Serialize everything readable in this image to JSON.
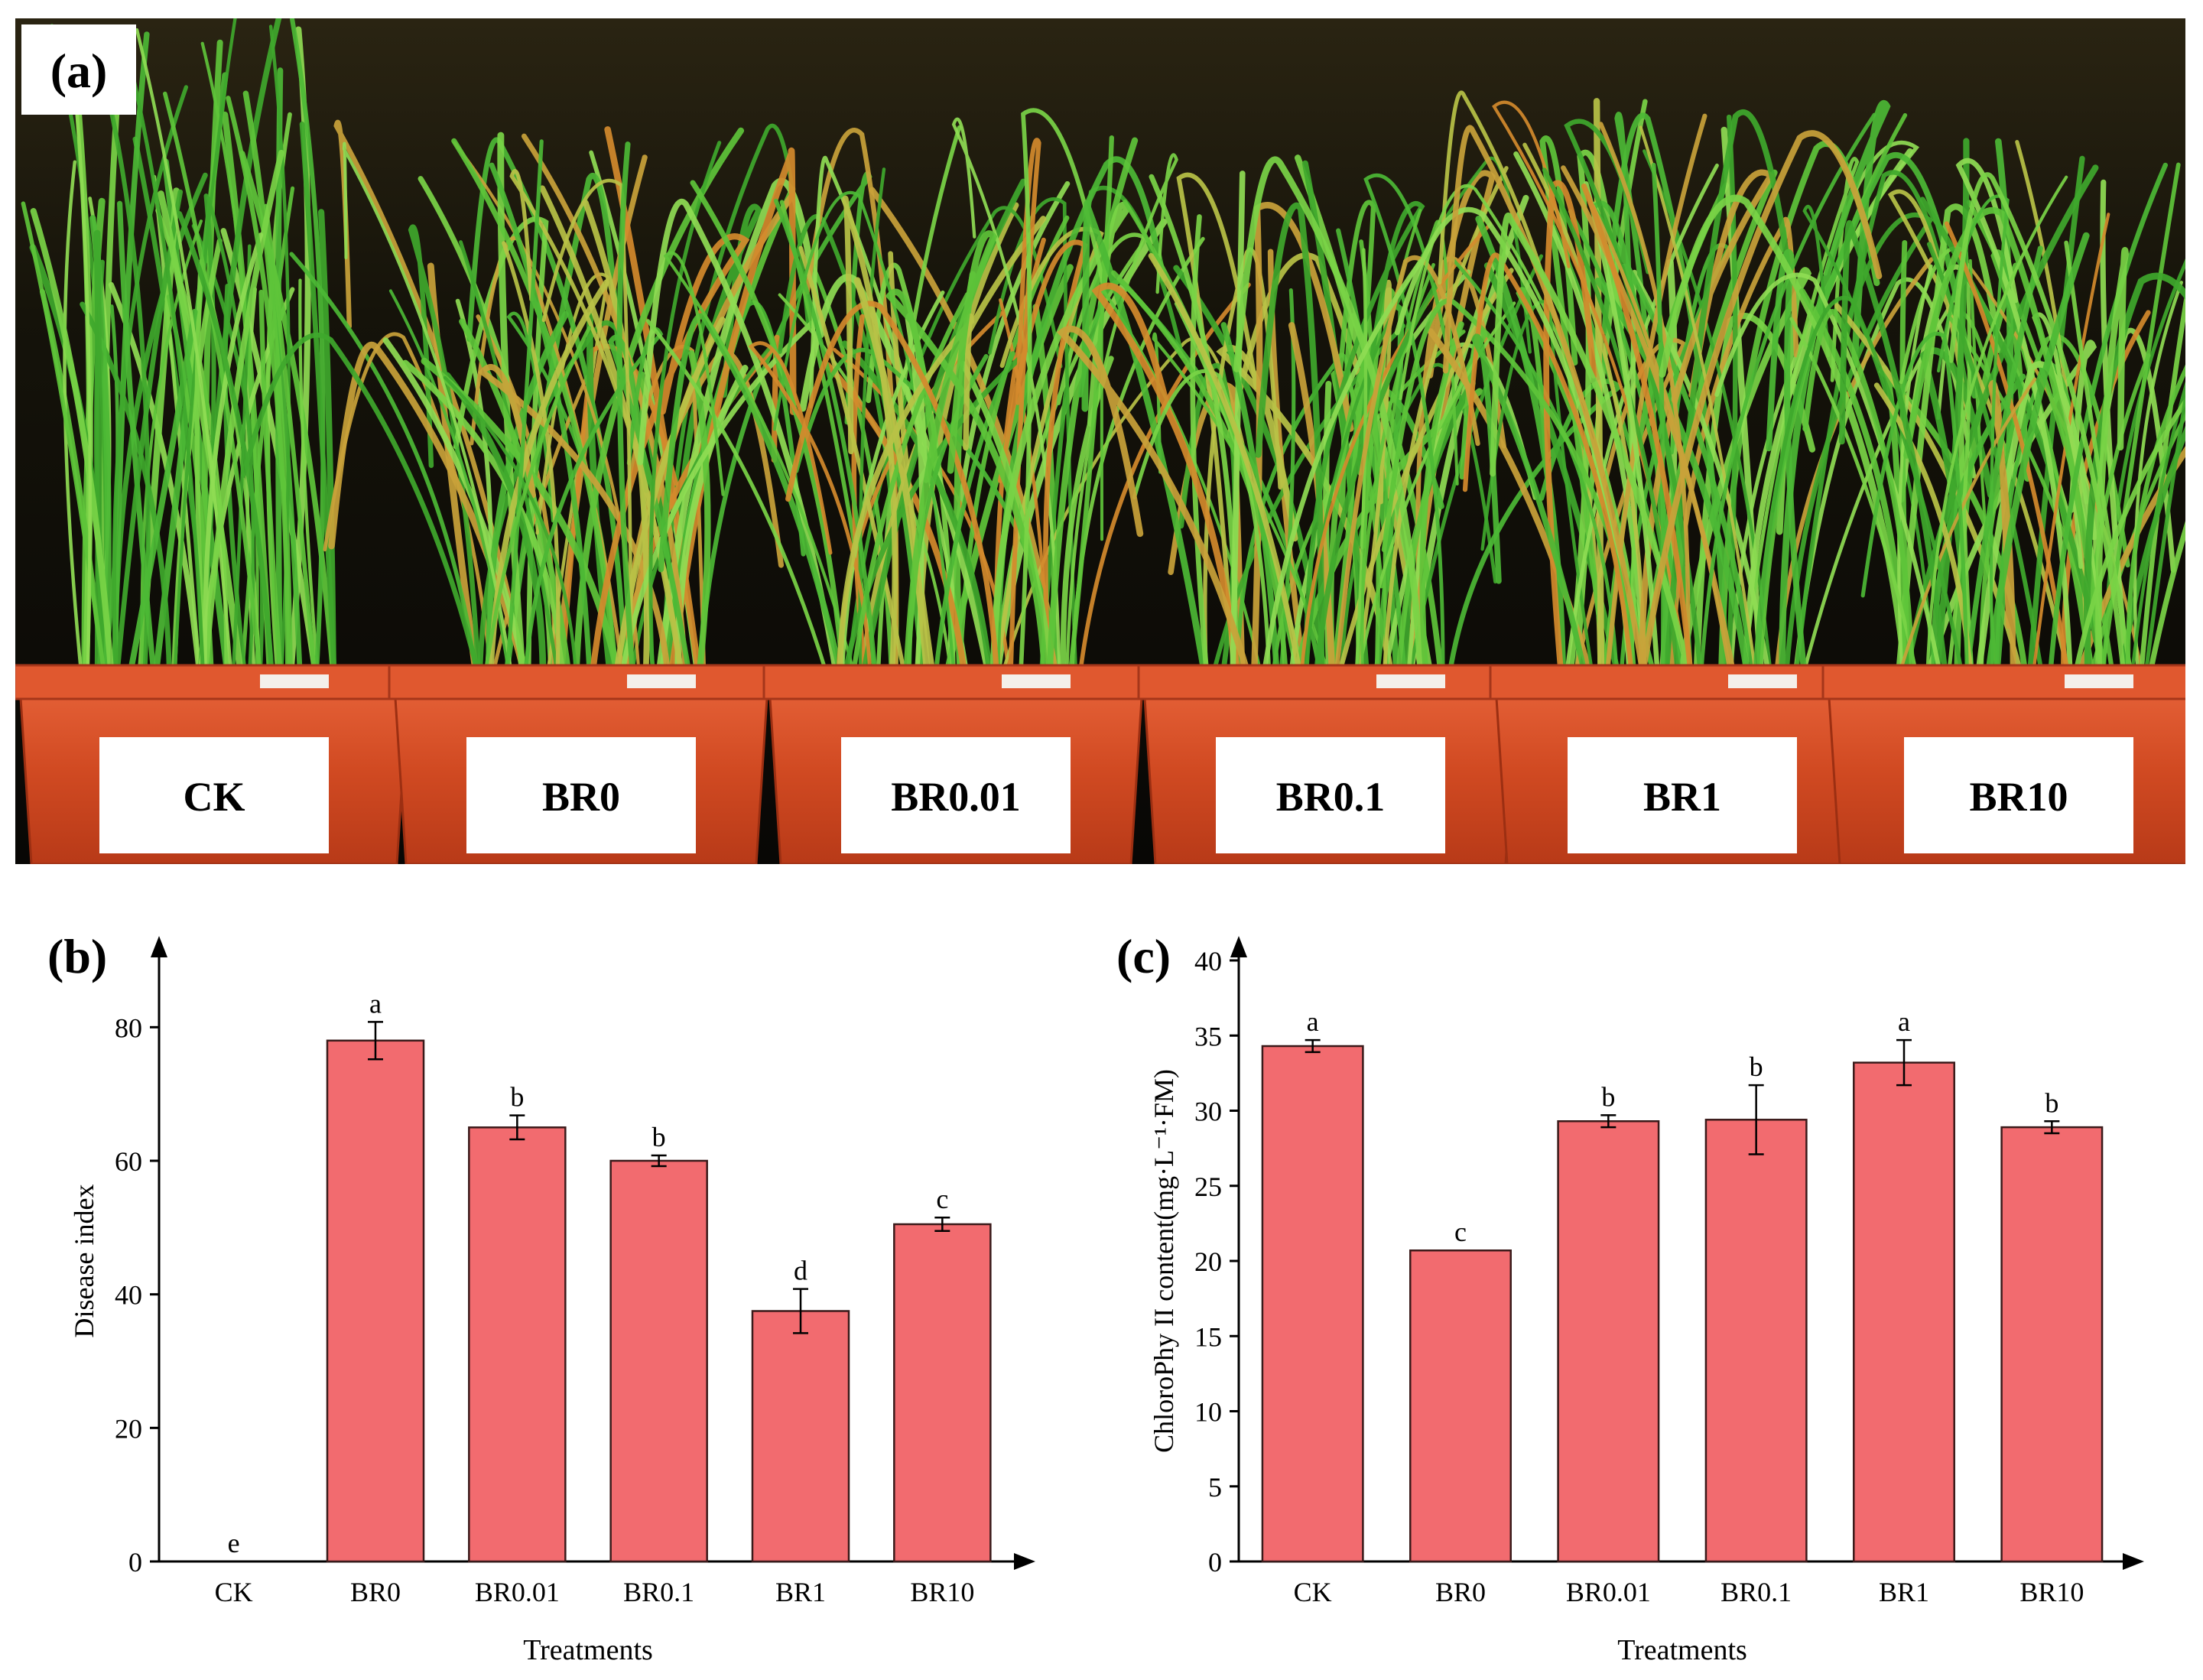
{
  "photo": {
    "panel_label": "(a)",
    "pot_labels": [
      "CK",
      "BR0",
      "BR0.01",
      "BR0.1",
      "BR1",
      "BR10"
    ]
  },
  "chart_data": [
    {
      "panel_label": "(b)",
      "type": "bar",
      "categories": [
        "CK",
        "BR0",
        "BR0.01",
        "BR0.1",
        "BR1",
        "BR10"
      ],
      "values": [
        0,
        78,
        65,
        60,
        37.5,
        50.5
      ],
      "errors": [
        0,
        2.8,
        1.8,
        0.8,
        3.3,
        1.0
      ],
      "significance": [
        "e",
        "a",
        "b",
        "b",
        "d",
        "c"
      ],
      "xlabel": "Treatments",
      "ylabel": "Disease index",
      "ylim": [
        0,
        90
      ],
      "yticks": [
        0,
        20,
        40,
        60,
        80
      ],
      "bar_color": "#f26b6f"
    },
    {
      "panel_label": "(c)",
      "type": "bar",
      "categories": [
        "CK",
        "BR0",
        "BR0.01",
        "BR0.1",
        "BR1",
        "BR10"
      ],
      "values": [
        34.3,
        20.7,
        29.3,
        29.4,
        33.2,
        28.9
      ],
      "errors": [
        0.4,
        0,
        0.4,
        2.3,
        1.5,
        0.4
      ],
      "significance": [
        "a",
        "c",
        "b",
        "b",
        "a",
        "b"
      ],
      "xlabel": "Treatments",
      "ylabel": "ChloroPhy II content(mg·L⁻¹·FM)",
      "ylim": [
        0,
        40
      ],
      "yticks": [
        0,
        5,
        10,
        15,
        20,
        25,
        30,
        35,
        40
      ],
      "bar_color": "#f26b6f"
    }
  ]
}
